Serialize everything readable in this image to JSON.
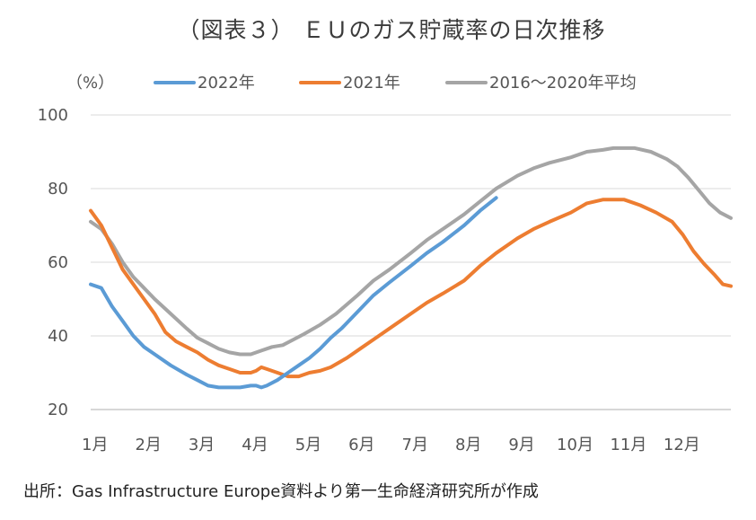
{
  "chart_data": {
    "type": "line",
    "title": "（図表３） ＥＵのガス貯蔵率の日次推移",
    "unit_label": "（%）",
    "ylim": [
      20,
      100
    ],
    "yticks": [
      20,
      40,
      60,
      80,
      100
    ],
    "xlim": [
      1,
      13
    ],
    "xticks": [
      {
        "label": "1月",
        "value": 1
      },
      {
        "label": "2月",
        "value": 2
      },
      {
        "label": "3月",
        "value": 3
      },
      {
        "label": "4月",
        "value": 4
      },
      {
        "label": "5月",
        "value": 5
      },
      {
        "label": "6月",
        "value": 6
      },
      {
        "label": "7月",
        "value": 7
      },
      {
        "label": "8月",
        "value": 8
      },
      {
        "label": "9月",
        "value": 9
      },
      {
        "label": "10月",
        "value": 10
      },
      {
        "label": "11月",
        "value": 11
      },
      {
        "label": "12月",
        "value": 12
      }
    ],
    "legend_position": "top",
    "series": [
      {
        "name": "2022年",
        "color": "#5b9bd5",
        "x": [
          1.0,
          1.2,
          1.4,
          1.6,
          1.8,
          2.0,
          2.2,
          2.5,
          2.8,
          3.0,
          3.2,
          3.4,
          3.6,
          3.8,
          4.0,
          4.1,
          4.2,
          4.3,
          4.5,
          4.7,
          4.9,
          5.1,
          5.3,
          5.5,
          5.7,
          6.0,
          6.3,
          6.6,
          7.0,
          7.3,
          7.6,
          8.0,
          8.3,
          8.6
        ],
        "y": [
          54,
          53,
          48,
          44,
          40,
          37,
          35,
          32,
          29.5,
          28,
          26.5,
          26,
          26,
          26,
          26.5,
          26.5,
          26,
          26.5,
          28,
          30,
          32,
          34,
          36.5,
          39.5,
          42,
          46.5,
          51,
          54.5,
          59,
          62.5,
          65.5,
          70,
          74,
          77.5
        ]
      },
      {
        "name": "2021年",
        "color": "#ed7d31",
        "x": [
          1.0,
          1.2,
          1.4,
          1.6,
          1.8,
          2.0,
          2.2,
          2.4,
          2.6,
          2.8,
          3.0,
          3.2,
          3.4,
          3.6,
          3.8,
          3.9,
          4.0,
          4.1,
          4.2,
          4.3,
          4.5,
          4.7,
          4.9,
          5.1,
          5.3,
          5.5,
          5.8,
          6.1,
          6.4,
          6.7,
          7.0,
          7.3,
          7.6,
          8.0,
          8.3,
          8.6,
          9.0,
          9.3,
          9.6,
          10.0,
          10.3,
          10.6,
          10.8,
          11.0,
          11.3,
          11.6,
          11.9,
          12.1,
          12.3,
          12.5,
          12.7,
          12.85,
          13.0
        ],
        "y": [
          74,
          70,
          64,
          58,
          54,
          50,
          46,
          41,
          38.5,
          37,
          35.5,
          33.5,
          32,
          31,
          30,
          30,
          30,
          30.5,
          31.5,
          31,
          30,
          29,
          29,
          30,
          30.5,
          31.5,
          34,
          37,
          40,
          43,
          46,
          49,
          51.5,
          55,
          59,
          62.5,
          66.5,
          69,
          71,
          73.5,
          76,
          77,
          77,
          77,
          75.5,
          73.5,
          71,
          67.5,
          63,
          59.5,
          56.5,
          54,
          53.5
        ]
      },
      {
        "name": "2016～2020年平均",
        "color": "#a5a5a5",
        "x": [
          1.0,
          1.2,
          1.4,
          1.6,
          1.8,
          2.0,
          2.2,
          2.5,
          2.8,
          3.0,
          3.2,
          3.4,
          3.6,
          3.8,
          4.0,
          4.2,
          4.4,
          4.6,
          4.8,
          5.0,
          5.3,
          5.6,
          6.0,
          6.3,
          6.6,
          7.0,
          7.3,
          7.6,
          8.0,
          8.3,
          8.6,
          9.0,
          9.3,
          9.6,
          10.0,
          10.3,
          10.6,
          10.8,
          11.0,
          11.2,
          11.5,
          11.8,
          12.0,
          12.2,
          12.4,
          12.6,
          12.8,
          13.0
        ],
        "y": [
          71,
          69,
          65,
          60,
          56,
          53,
          50,
          46,
          42,
          39.5,
          38,
          36.5,
          35.5,
          35,
          35,
          36,
          37,
          37.5,
          39,
          40.5,
          43,
          46,
          51,
          55,
          58,
          62.5,
          66,
          69,
          73,
          76.5,
          80,
          83.5,
          85.5,
          87,
          88.5,
          90,
          90.5,
          91,
          91,
          91,
          90,
          88,
          86,
          83,
          79.5,
          76,
          73.5,
          72
        ]
      }
    ],
    "source": "出所：Gas Infrastructure Europe資料より第一生命経済研究所が作成"
  }
}
